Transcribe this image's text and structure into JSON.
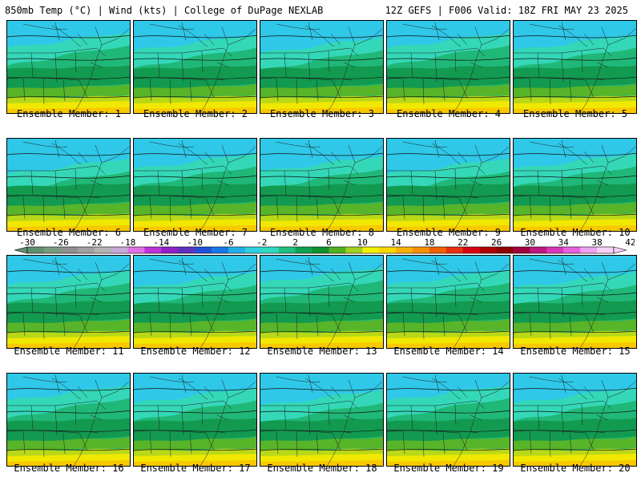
{
  "header": {
    "left": "850mb Temp (°C) | Wind (kts) | College of DuPage NEXLAB",
    "right": "12Z GEFS | F006 Valid: 18Z FRI MAY 23 2025"
  },
  "members": [
    {
      "label": "Ensemble Member: 1"
    },
    {
      "label": "Ensemble Member: 2"
    },
    {
      "label": "Ensemble Member: 3"
    },
    {
      "label": "Ensemble Member: 4"
    },
    {
      "label": "Ensemble Member: 5"
    },
    {
      "label": "Ensemble Member: 6"
    },
    {
      "label": "Ensemble Member: 7"
    },
    {
      "label": "Ensemble Member: 8"
    },
    {
      "label": "Ensemble Member: 9"
    },
    {
      "label": "Ensemble Member: 10"
    },
    {
      "label": "Ensemble Member: 11"
    },
    {
      "label": "Ensemble Member: 12"
    },
    {
      "label": "Ensemble Member: 13"
    },
    {
      "label": "Ensemble Member: 14"
    },
    {
      "label": "Ensemble Member: 15"
    },
    {
      "label": "Ensemble Member: 16"
    },
    {
      "label": "Ensemble Member: 17"
    },
    {
      "label": "Ensemble Member: 18"
    },
    {
      "label": "Ensemble Member: 19"
    },
    {
      "label": "Ensemble Member: 20"
    }
  ],
  "colorbar": {
    "ticks": [
      "-30",
      "-26",
      "-22",
      "-18",
      "-14",
      "-10",
      "-6",
      "-2",
      "2",
      "6",
      "10",
      "14",
      "18",
      "22",
      "26",
      "30",
      "34",
      "38",
      "42"
    ],
    "colors": [
      "#5f8f6f",
      "#7a9a80",
      "#909090",
      "#a0a0a0",
      "#b4b4b4",
      "#c8a8d8",
      "#e070e8",
      "#c030d8",
      "#9020c8",
      "#6030c0",
      "#2050d8",
      "#1878e8",
      "#20b0e8",
      "#30d0e0",
      "#30d8c0",
      "#20c080",
      "#10a050",
      "#109030",
      "#50b020",
      "#a0d020",
      "#f0f000",
      "#f8d800",
      "#f8b000",
      "#f89000",
      "#f06000",
      "#e83010",
      "#d80010",
      "#b00000",
      "#900000",
      "#a00040",
      "#c01880",
      "#d838b8",
      "#e860e0",
      "#f0a0f0",
      "#f8d0f8"
    ]
  },
  "map_colors": {
    "cold": "#2fc8e8",
    "cool": "#34d8b8",
    "mild": "#20b878",
    "green": "#129a50",
    "lime": "#58b428",
    "yellow_green": "#b8d818",
    "yellow": "#f0e800",
    "gold": "#f8c800"
  }
}
